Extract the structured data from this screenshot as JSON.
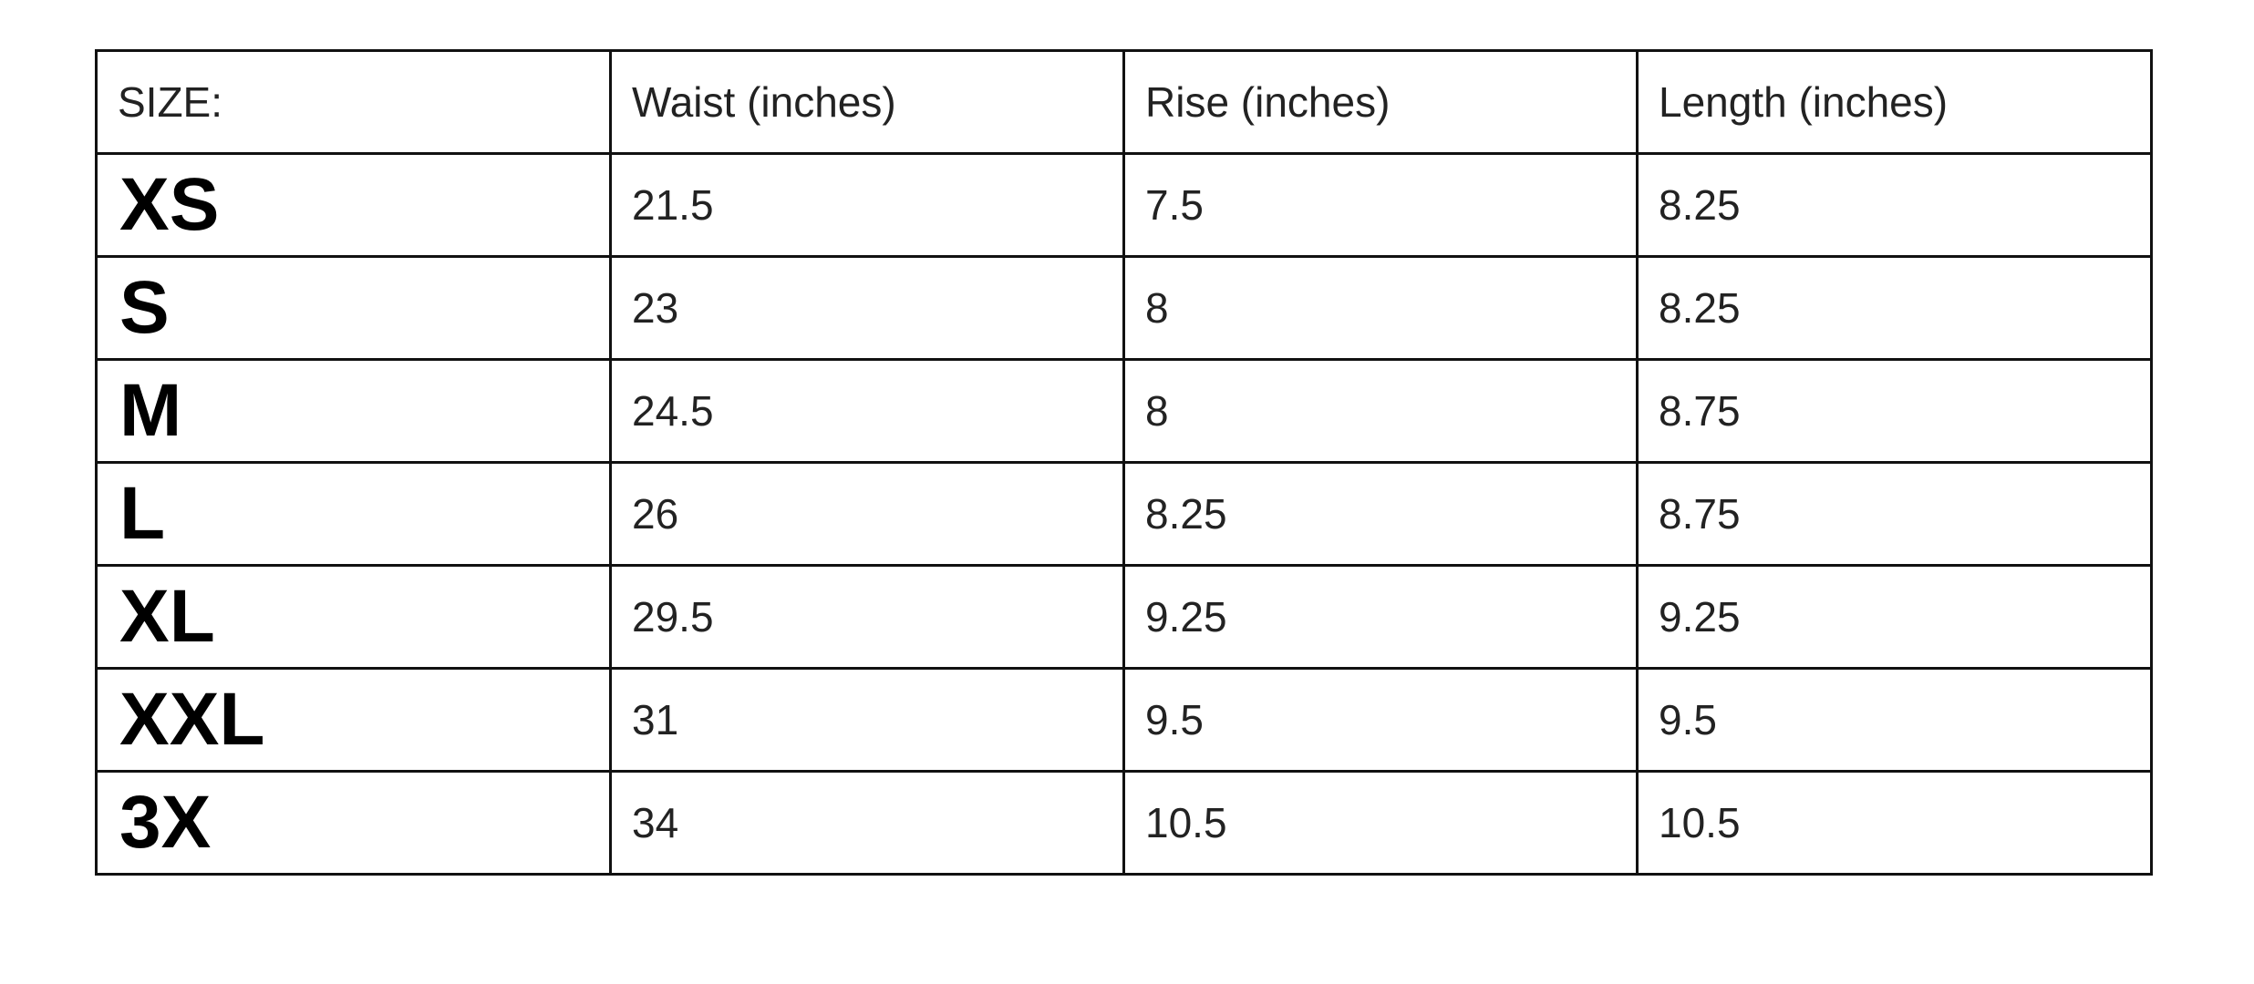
{
  "table": {
    "header": [
      "SIZE:",
      "Waist (inches)",
      "Rise (inches)",
      "Length (inches)"
    ],
    "rows": [
      [
        "XS",
        "21.5",
        "7.5",
        "8.25"
      ],
      [
        "S",
        "23",
        "8",
        "8.25"
      ],
      [
        "M",
        "24.5",
        "8",
        "8.75"
      ],
      [
        "L",
        "26",
        "8.25",
        "8.75"
      ],
      [
        "XL",
        "29.5",
        "9.25",
        "9.25"
      ],
      [
        "XXL",
        "31",
        "9.5",
        "9.5"
      ],
      [
        "3X",
        "34",
        "10.5",
        "10.5"
      ]
    ]
  }
}
